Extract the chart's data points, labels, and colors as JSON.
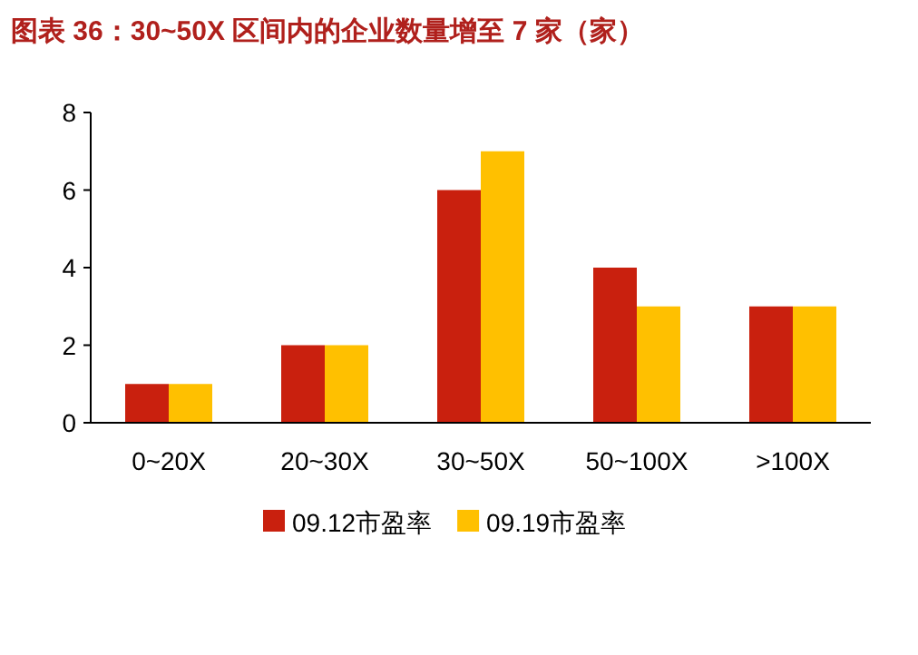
{
  "chart_data": {
    "type": "bar",
    "title": "图表 36：30~50X 区间内的企业数量增至 7 家（家）",
    "categories": [
      "0~20X",
      "20~30X",
      "30~50X",
      "50~100X",
      ">100X"
    ],
    "series": [
      {
        "name": "09.12市盈率",
        "color": "#c9200e",
        "values": [
          1,
          2,
          6,
          4,
          3
        ]
      },
      {
        "name": "09.19市盈率",
        "color": "#ffc000",
        "values": [
          1,
          2,
          7,
          3,
          3
        ]
      }
    ],
    "ylim": [
      0,
      8
    ],
    "yticks": [
      0,
      2,
      4,
      6,
      8
    ],
    "grid": false,
    "legend": "bottom"
  }
}
